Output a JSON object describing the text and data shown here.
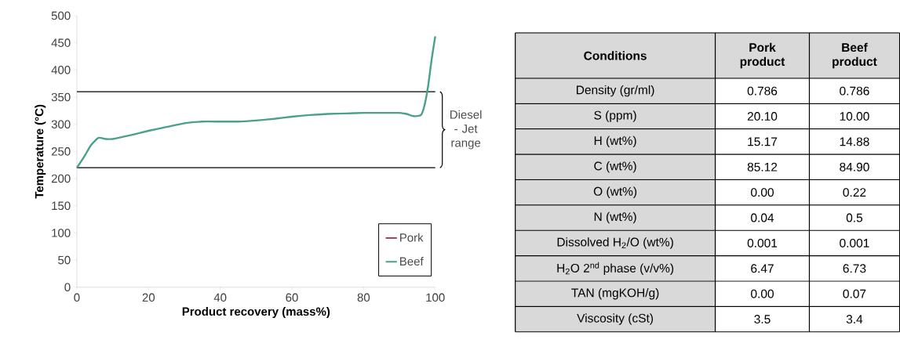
{
  "chart_data": [
    {
      "type": "line",
      "xlabel": "Product recovery (mass%)",
      "ylabel": "Temperature (°C)",
      "x": [
        0,
        2,
        4,
        6,
        8,
        10,
        15,
        20,
        25,
        30,
        35,
        40,
        45,
        50,
        55,
        60,
        65,
        70,
        75,
        80,
        85,
        90,
        92,
        94,
        96,
        97,
        98,
        99,
        100
      ],
      "series": [
        {
          "name": "Pork",
          "color": "#a0404a",
          "values": [
            null,
            null,
            null,
            null,
            null,
            null,
            null,
            null,
            null,
            null,
            null,
            null,
            null,
            null,
            null,
            null,
            null,
            null,
            null,
            null,
            null,
            null,
            null,
            null,
            null,
            null,
            null,
            null,
            null
          ]
        },
        {
          "name": "Beef",
          "color": "#4aa08a",
          "values": [
            220,
            240,
            262,
            275,
            273,
            273,
            280,
            288,
            295,
            302,
            305,
            305,
            305,
            307,
            310,
            314,
            317,
            319,
            320,
            321,
            321,
            321,
            319,
            315,
            317,
            335,
            370,
            420,
            462
          ]
        }
      ],
      "xlim": [
        0,
        100
      ],
      "xticks": [
        0,
        20,
        40,
        60,
        80,
        100
      ],
      "ylim": [
        0,
        500
      ],
      "yticks": [
        0,
        50,
        100,
        150,
        200,
        250,
        300,
        350,
        400,
        450,
        500
      ],
      "ref_lines": [
        {
          "axis": "y",
          "value": 360
        },
        {
          "axis": "y",
          "value": 220
        }
      ],
      "annotations": [
        "Diesel - Jet range"
      ],
      "legend": "bottom right",
      "line_style": "solid",
      "marker": "none",
      "grid": false
    },
    {
      "type": "other",
      "ylabel": "Conditions",
      "categories": [
        "Density (gr/ml)",
        "S (ppm)",
        "H (wt%)",
        "C (wt%)",
        "O (wt%)",
        "N (wt%)",
        "Dissolved H$_{2}$/O (wt%)",
        "H$_{2}$O 2$^{nd}$ phase (v/v%)",
        "TAN (mgKOH/g)",
        "Viscosity (cSt)"
      ],
      "series": [
        {
          "name": "Pork product",
          "values": [
            0.786,
            20.1,
            15.17,
            85.12,
            0,
            0.04,
            0.001,
            6.47,
            0,
            3.5
          ],
          "value_labels": [
            "0.786",
            "20.10",
            "15.17",
            "85.12",
            "0.00",
            "0.04",
            "0.001",
            "6.47",
            "0.00",
            "3.5"
          ]
        },
        {
          "name": "Beef product",
          "values": [
            0.786,
            10,
            14.88,
            84.9,
            0.22,
            0.5,
            0.001,
            6.73,
            0.07,
            3.4
          ],
          "value_labels": [
            "0.786",
            "10.00",
            "14.88",
            "84.90",
            "0.22",
            "0.5",
            "0.001",
            "6.73",
            "0.07",
            "3.4"
          ]
        }
      ],
      "data_labels": true
    }
  ]
}
